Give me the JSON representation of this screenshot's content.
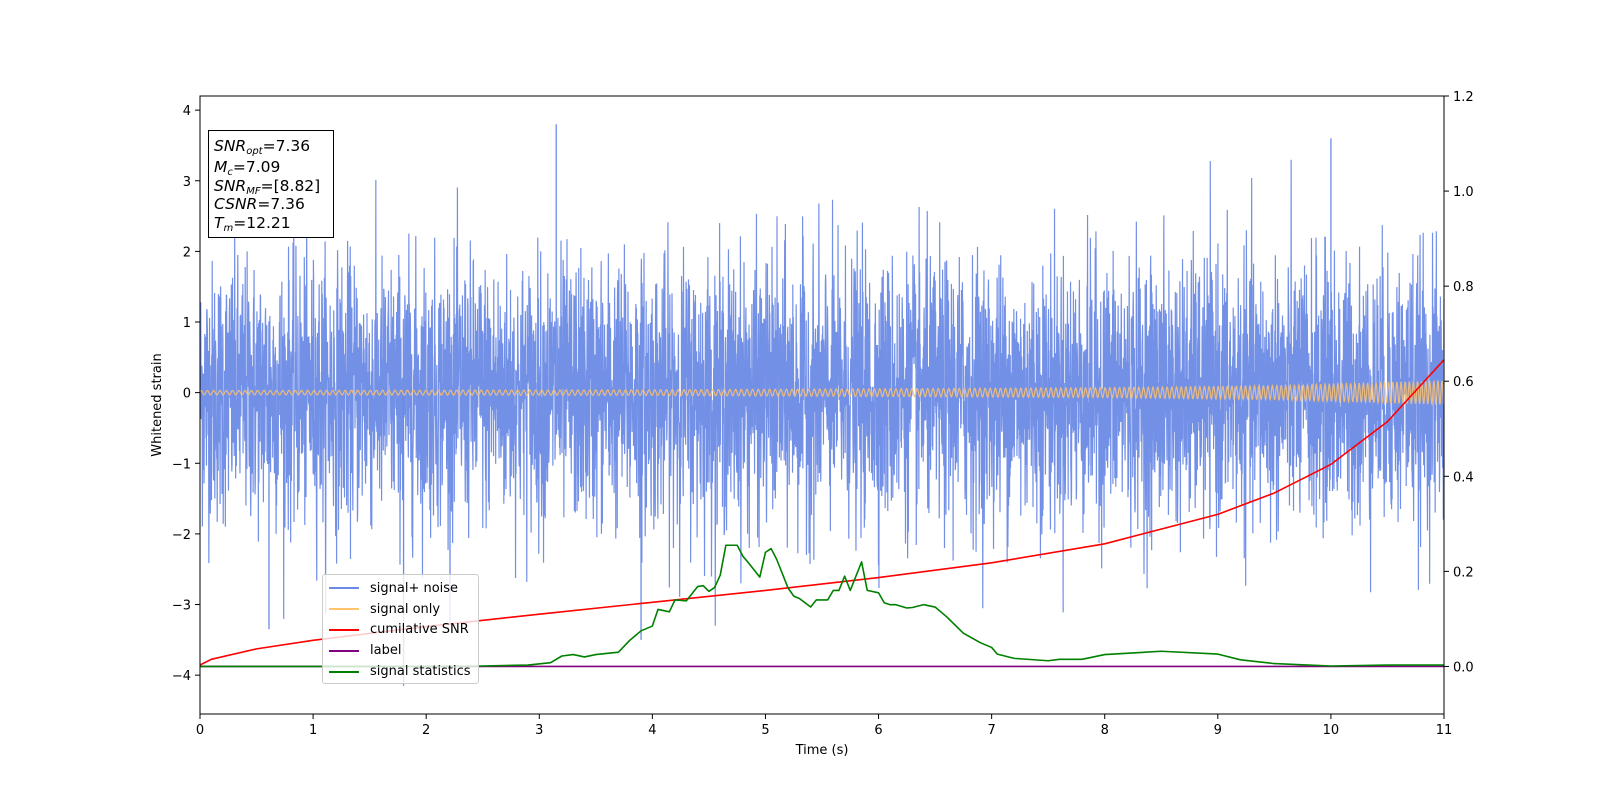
{
  "chart_data": {
    "type": "line",
    "title": "",
    "xlabel": "Time (s)",
    "ylabel": "Whitened strain",
    "xlim": [
      0,
      11
    ],
    "ylim_left": [
      -4.55,
      4.2
    ],
    "ylim_right": [
      -0.1,
      1.2
    ],
    "x_ticks": [
      "0",
      "1",
      "2",
      "3",
      "4",
      "5",
      "6",
      "7",
      "8",
      "9",
      "10",
      "11"
    ],
    "y_ticks_left": [
      "−4",
      "−3",
      "−2",
      "−1",
      "0",
      "1",
      "2",
      "3",
      "4"
    ],
    "y_ticks_right": [
      "0.0",
      "0.2",
      "0.4",
      "0.6",
      "0.8",
      "1.0",
      "1.2"
    ],
    "grid": false,
    "legend_position": "lower-left",
    "info_box": {
      "snr_opt": "7.36",
      "mc": "7.09",
      "snr_mf": "[8.82]",
      "csnr": "7.36",
      "tm": "12.21"
    },
    "series": [
      {
        "name": "signal+ noise",
        "axis": "left",
        "color": "#6b8ae6",
        "kind": "noise",
        "envelope_typical": [
          -2.4,
          2.4
        ],
        "extremes": [
          [
            0.61,
            -3.35
          ],
          [
            1.8,
            -4.15
          ],
          [
            3.15,
            3.8
          ],
          [
            3.9,
            -3.5
          ],
          [
            10.0,
            3.6
          ]
        ]
      },
      {
        "name": "signal only",
        "axis": "left",
        "color": "#ffc36b",
        "kind": "chirp",
        "amplitude": [
          [
            0,
            0.03
          ],
          [
            4,
            0.04
          ],
          [
            8,
            0.07
          ],
          [
            9.5,
            0.1
          ],
          [
            11,
            0.17
          ]
        ]
      },
      {
        "name": "cumilative SNR",
        "axis": "right",
        "color": "#ff0000",
        "x": [
          0,
          0.1,
          0.5,
          1,
          2,
          3,
          4,
          5,
          6,
          7,
          8,
          9,
          9.5,
          10,
          10.5,
          11
        ],
        "y": [
          0.003,
          0.015,
          0.037,
          0.055,
          0.084,
          0.11,
          0.135,
          0.16,
          0.187,
          0.218,
          0.258,
          0.32,
          0.365,
          0.425,
          0.515,
          0.645
        ]
      },
      {
        "name": "label",
        "axis": "right",
        "color": "#800080",
        "x": [
          0,
          11
        ],
        "y": [
          0.0,
          0.0
        ]
      },
      {
        "name": "signal statistics",
        "axis": "right",
        "color": "#008000",
        "x": [
          0,
          1,
          2,
          2.5,
          2.9,
          3.1,
          3.2,
          3.3,
          3.4,
          3.5,
          3.7,
          3.8,
          3.9,
          4.0,
          4.05,
          4.15,
          4.2,
          4.3,
          4.4,
          4.45,
          4.5,
          4.55,
          4.6,
          4.65,
          4.75,
          4.8,
          4.85,
          4.95,
          5.0,
          5.05,
          5.1,
          5.2,
          5.25,
          5.3,
          5.4,
          5.45,
          5.55,
          5.6,
          5.65,
          5.7,
          5.75,
          5.85,
          5.9,
          6.0,
          6.05,
          6.1,
          6.15,
          6.25,
          6.3,
          6.4,
          6.5,
          6.6,
          6.75,
          6.9,
          7.0,
          7.05,
          7.2,
          7.5,
          7.6,
          7.7,
          7.8,
          8.0,
          8.5,
          9.0,
          9.2,
          9.5,
          10.0,
          10.5,
          11.0
        ],
        "y": [
          0.0,
          0.0,
          0.0,
          0.001,
          0.003,
          0.008,
          0.022,
          0.025,
          0.02,
          0.025,
          0.03,
          0.055,
          0.075,
          0.085,
          0.12,
          0.115,
          0.14,
          0.138,
          0.168,
          0.17,
          0.158,
          0.166,
          0.192,
          0.255,
          0.255,
          0.232,
          0.218,
          0.188,
          0.24,
          0.248,
          0.225,
          0.165,
          0.148,
          0.143,
          0.125,
          0.14,
          0.14,
          0.16,
          0.16,
          0.19,
          0.16,
          0.22,
          0.16,
          0.155,
          0.134,
          0.13,
          0.13,
          0.123,
          0.124,
          0.13,
          0.125,
          0.105,
          0.07,
          0.05,
          0.04,
          0.026,
          0.017,
          0.012,
          0.015,
          0.015,
          0.015,
          0.025,
          0.032,
          0.026,
          0.014,
          0.006,
          0.001,
          0.003,
          0.003
        ]
      }
    ]
  }
}
